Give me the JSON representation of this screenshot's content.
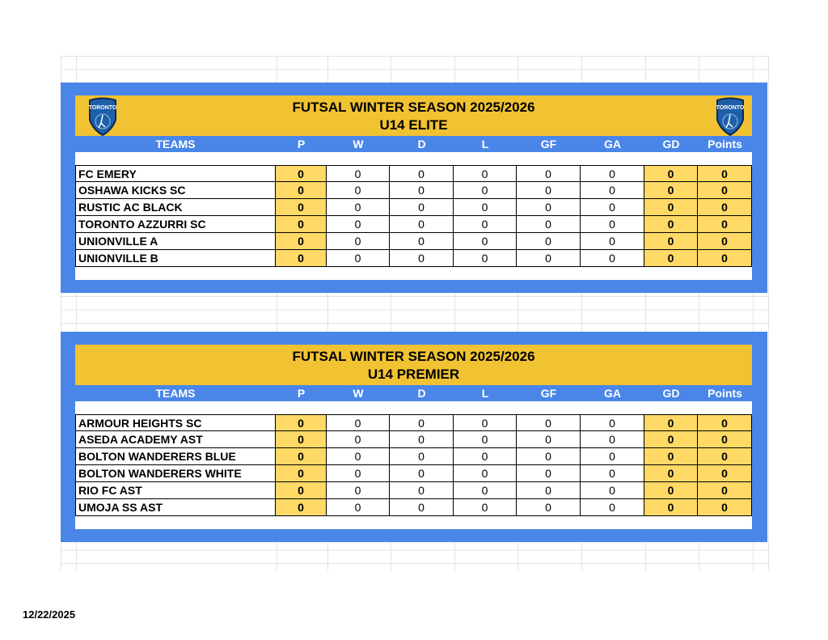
{
  "colors": {
    "band": "#4a86e8",
    "title": "#f1c232",
    "highlight": "#ffd966"
  },
  "columns": [
    "TEAMS",
    "P",
    "W",
    "D",
    "L",
    "GF",
    "GA",
    "GD",
    "Points"
  ],
  "tables": [
    {
      "title": "FUTSAL WINTER SEASON 2025/2026",
      "subtitle": "U14 ELITE",
      "logos": true,
      "logo_text": "TORONTO",
      "rows": [
        [
          "FC EMERY",
          "0",
          "0",
          "0",
          "0",
          "0",
          "0",
          "0",
          "0"
        ],
        [
          "OSHAWA KICKS SC",
          "0",
          "0",
          "0",
          "0",
          "0",
          "0",
          "0",
          "0"
        ],
        [
          "RUSTIC AC BLACK",
          "0",
          "0",
          "0",
          "0",
          "0",
          "0",
          "0",
          "0"
        ],
        [
          "TORONTO AZZURRI SC",
          "0",
          "0",
          "0",
          "0",
          "0",
          "0",
          "0",
          "0"
        ],
        [
          "UNIONVILLE A",
          "0",
          "0",
          "0",
          "0",
          "0",
          "0",
          "0",
          "0"
        ],
        [
          "UNIONVILLE B",
          "0",
          "0",
          "0",
          "0",
          "0",
          "0",
          "0",
          "0"
        ]
      ]
    },
    {
      "title": "FUTSAL WINTER SEASON 2025/2026",
      "subtitle": "U14 PREMIER",
      "logos": false,
      "rows": [
        [
          "ARMOUR HEIGHTS SC",
          "0",
          "0",
          "0",
          "0",
          "0",
          "0",
          "0",
          "0"
        ],
        [
          "ASEDA ACADEMY AST",
          "0",
          "0",
          "0",
          "0",
          "0",
          "0",
          "0",
          "0"
        ],
        [
          "BOLTON WANDERERS BLUE",
          "0",
          "0",
          "0",
          "0",
          "0",
          "0",
          "0",
          "0"
        ],
        [
          "BOLTON WANDERERS WHITE",
          "0",
          "0",
          "0",
          "0",
          "0",
          "0",
          "0",
          "0"
        ],
        [
          "RIO FC AST",
          "0",
          "0",
          "0",
          "0",
          "0",
          "0",
          "0",
          "0"
        ],
        [
          "UMOJA SS AST",
          "0",
          "0",
          "0",
          "0",
          "0",
          "0",
          "0",
          "0"
        ]
      ]
    }
  ],
  "footer_date": "12/22/2025"
}
